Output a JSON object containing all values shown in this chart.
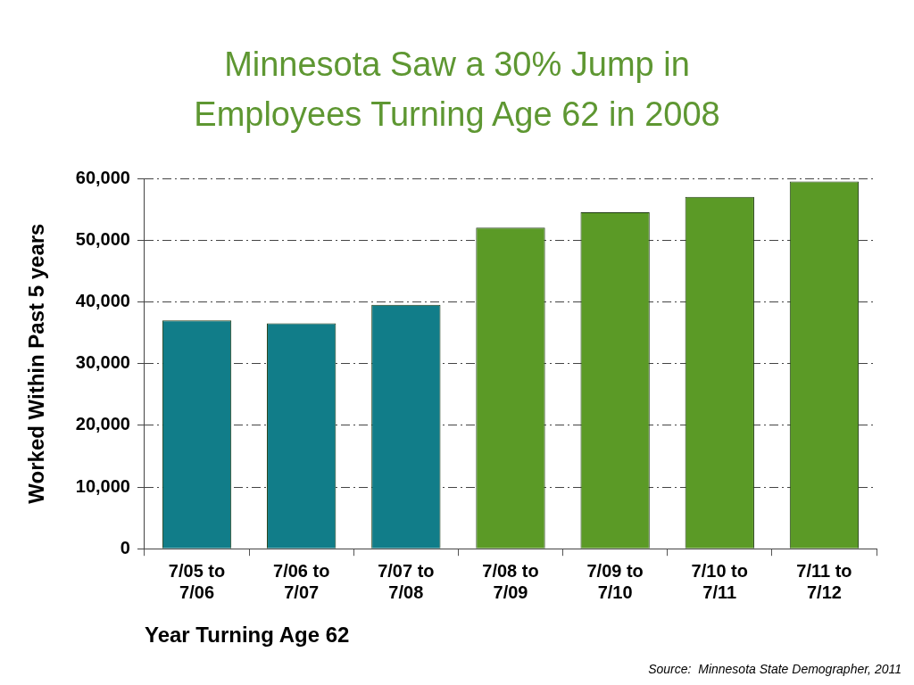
{
  "chart_data": {
    "type": "bar",
    "title": "Minnesota Saw a 30% Jump in Employees Turning Age 62 in 2008",
    "xlabel": "Year Turning Age 62",
    "ylabel": "Worked Within Past 5 years",
    "annotations": [
      "Source:  Minnesota State Demographer, 2011"
    ],
    "categories": [
      "7/05 to 7/06",
      "7/06 to 7/07",
      "7/07 to 7/08",
      "7/08 to 7/09",
      "7/09 to 7/10",
      "7/10 to 7/11",
      "7/11 to 7/12"
    ],
    "values": [
      37000,
      36500,
      39500,
      52000,
      54500,
      57000,
      59500
    ],
    "colors": [
      "#117d89",
      "#117d89",
      "#117d89",
      "#5b9a26",
      "#5b9a26",
      "#5b9a26",
      "#5b9a26"
    ],
    "ylim": [
      0,
      60000
    ],
    "yticks": [
      0,
      {
        "value": 10000,
        "label": "10,000"
      },
      {
        "value": 20000,
        "label": "20,000"
      },
      {
        "value": 30000,
        "label": "30,000"
      },
      {
        "value": 40000,
        "label": "40,000"
      },
      {
        "value": 50000,
        "label": "50,000"
      },
      {
        "value": 60000,
        "label": "60,000"
      }
    ],
    "grid": "y"
  }
}
